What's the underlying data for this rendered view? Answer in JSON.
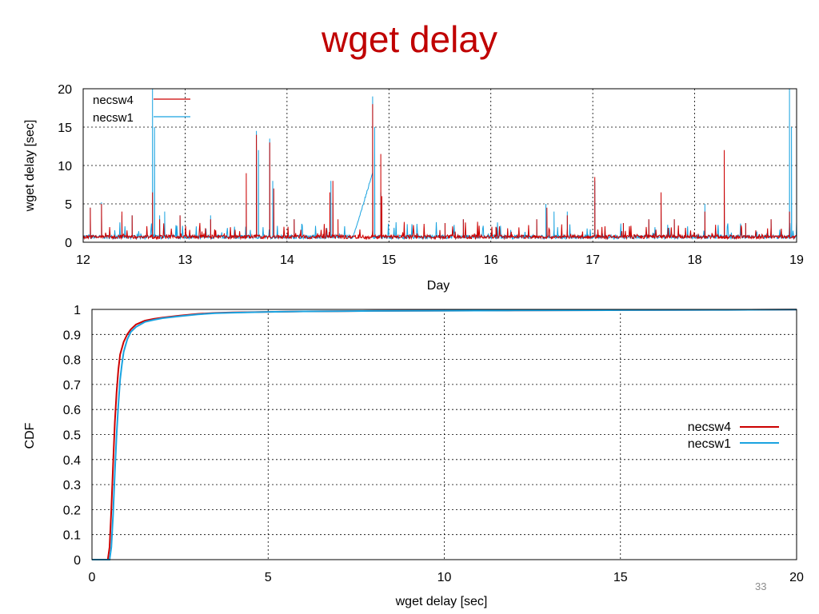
{
  "slide": {
    "title": "wget delay",
    "page_number": "33"
  },
  "colors": {
    "title": "#c00000",
    "necsw4": "#cc0000",
    "necsw1": "#1aa3e0",
    "grid": "#000000"
  },
  "chart_data": [
    {
      "type": "line",
      "xlabel": "Day",
      "ylabel": "wget delay [sec]",
      "xlim": [
        12,
        19
      ],
      "ylim": [
        0,
        20
      ],
      "xticks": [
        12,
        13,
        14,
        15,
        16,
        17,
        18,
        19
      ],
      "yticks": [
        0,
        5,
        10,
        15,
        20
      ],
      "grid": true,
      "legend_position": "top-left",
      "baseline": 0.7,
      "series": [
        {
          "name": "necsw4",
          "spikes": [
            [
              12.07,
              4.5
            ],
            [
              12.18,
              5.0
            ],
            [
              12.38,
              4.0
            ],
            [
              12.48,
              3.5
            ],
            [
              12.68,
              6.5
            ],
            [
              12.75,
              3.0
            ],
            [
              12.95,
              3.5
            ],
            [
              13.25,
              3.0
            ],
            [
              13.6,
              9.0
            ],
            [
              13.7,
              14.0
            ],
            [
              13.83,
              13.0
            ],
            [
              13.87,
              7.0
            ],
            [
              14.07,
              3.0
            ],
            [
              14.42,
              6.5
            ],
            [
              14.45,
              8.0
            ],
            [
              14.5,
              3.0
            ],
            [
              14.84,
              18.0
            ],
            [
              14.92,
              11.5
            ],
            [
              14.93,
              6.0
            ],
            [
              15.55,
              2.5
            ],
            [
              15.73,
              3.0
            ],
            [
              16.05,
              2.0
            ],
            [
              16.45,
              3.0
            ],
            [
              16.55,
              4.5
            ],
            [
              16.75,
              3.5
            ],
            [
              17.02,
              8.5
            ],
            [
              17.3,
              2.5
            ],
            [
              17.55,
              3.0
            ],
            [
              17.67,
              6.5
            ],
            [
              17.8,
              3.0
            ],
            [
              18.1,
              4.0
            ],
            [
              18.29,
              12.0
            ],
            [
              18.5,
              2.5
            ],
            [
              18.75,
              3.0
            ],
            [
              18.93,
              4.0
            ]
          ]
        },
        {
          "name": "necsw1",
          "spikes": [
            [
              12.07,
              4.5
            ],
            [
              12.18,
              5.2
            ],
            [
              12.38,
              3.5
            ],
            [
              12.48,
              3.5
            ],
            [
              12.68,
              20.0
            ],
            [
              12.7,
              15.0
            ],
            [
              12.75,
              3.5
            ],
            [
              12.8,
              4.0
            ],
            [
              12.95,
              3.5
            ],
            [
              13.25,
              3.5
            ],
            [
              13.6,
              5.0
            ],
            [
              13.7,
              14.5
            ],
            [
              13.72,
              12.0
            ],
            [
              13.83,
              13.5
            ],
            [
              13.86,
              8.0
            ],
            [
              14.07,
              3.0
            ],
            [
              14.43,
              8.0
            ],
            [
              14.45,
              5.0
            ],
            [
              14.84,
              19.0
            ],
            [
              14.86,
              15.0
            ],
            [
              14.92,
              6.5
            ],
            [
              15.55,
              2.5
            ],
            [
              15.73,
              3.0
            ],
            [
              16.05,
              2.0
            ],
            [
              16.45,
              3.0
            ],
            [
              16.54,
              5.0
            ],
            [
              16.62,
              4.0
            ],
            [
              16.75,
              4.0
            ],
            [
              17.02,
              8.0
            ],
            [
              17.3,
              2.5
            ],
            [
              17.55,
              3.0
            ],
            [
              17.67,
              5.5
            ],
            [
              17.8,
              3.0
            ],
            [
              18.1,
              5.0
            ],
            [
              18.29,
              7.5
            ],
            [
              18.5,
              2.5
            ],
            [
              18.75,
              3.0
            ],
            [
              18.93,
              20.0
            ],
            [
              18.95,
              15.0
            ]
          ],
          "ramps": [
            [
              14.65,
              0.7,
              14.84,
              9.0
            ]
          ]
        }
      ]
    },
    {
      "type": "line",
      "xlabel": "wget delay [sec]",
      "ylabel": "CDF",
      "xlim": [
        0,
        20
      ],
      "ylim": [
        0,
        1
      ],
      "xticks": [
        0,
        5,
        10,
        15,
        20
      ],
      "yticks": [
        0,
        0.1,
        0.2,
        0.3,
        0.4,
        0.5,
        0.6,
        0.7,
        0.8,
        0.9,
        1
      ],
      "grid": true,
      "legend_position": "right",
      "series": [
        {
          "name": "necsw4",
          "x": [
            0,
            0.45,
            0.5,
            0.55,
            0.6,
            0.65,
            0.7,
            0.75,
            0.8,
            0.9,
            1.0,
            1.1,
            1.25,
            1.5,
            1.75,
            2.0,
            2.5,
            3.0,
            3.5,
            4.0,
            5.0,
            6.0,
            7.0,
            8.0,
            10.0,
            12.0,
            15.0,
            18.0,
            20.0
          ],
          "y": [
            0,
            0,
            0.05,
            0.2,
            0.38,
            0.55,
            0.67,
            0.76,
            0.82,
            0.87,
            0.9,
            0.92,
            0.94,
            0.955,
            0.962,
            0.967,
            0.975,
            0.982,
            0.986,
            0.988,
            0.99,
            0.992,
            0.993,
            0.994,
            0.995,
            0.996,
            0.997,
            0.998,
            0.999
          ]
        },
        {
          "name": "necsw1",
          "x": [
            0,
            0.5,
            0.55,
            0.6,
            0.65,
            0.7,
            0.75,
            0.8,
            0.85,
            0.9,
            1.0,
            1.1,
            1.25,
            1.5,
            1.75,
            2.0,
            2.5,
            3.0,
            3.5,
            4.0,
            5.0,
            6.0,
            7.0,
            8.0,
            10.0,
            12.0,
            15.0,
            18.0,
            20.0
          ],
          "y": [
            0,
            0,
            0.05,
            0.18,
            0.35,
            0.5,
            0.62,
            0.72,
            0.78,
            0.83,
            0.88,
            0.91,
            0.93,
            0.95,
            0.958,
            0.965,
            0.973,
            0.98,
            0.985,
            0.987,
            0.99,
            0.992,
            0.993,
            0.994,
            0.995,
            0.996,
            0.997,
            0.998,
            0.999
          ]
        }
      ]
    }
  ]
}
